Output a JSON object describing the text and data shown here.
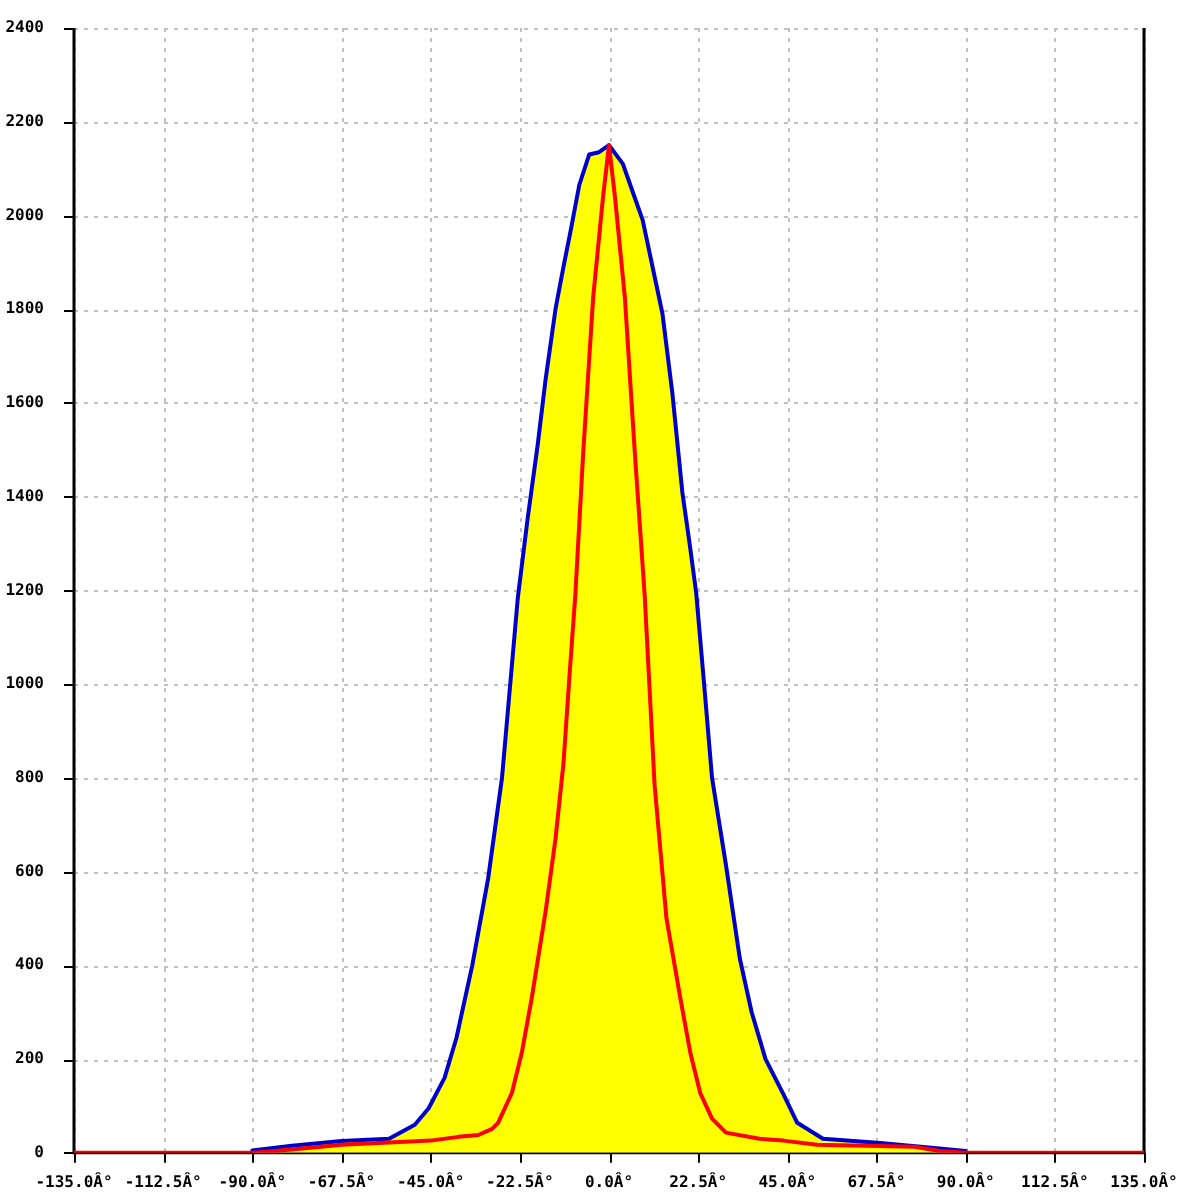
{
  "chart_data": {
    "type": "area",
    "xlim": [
      -135,
      135
    ],
    "xticks": [
      {
        "value": -135,
        "label": "-135.0Â°"
      },
      {
        "value": -112.5,
        "label": "-112.5Â°"
      },
      {
        "value": -90,
        "label": "-90.0Â°"
      },
      {
        "value": -67.5,
        "label": "-67.5Â°"
      },
      {
        "value": -45,
        "label": "-45.0Â°"
      },
      {
        "value": -22.5,
        "label": "-22.5Â°"
      },
      {
        "value": 0,
        "label": "0.0Â°"
      },
      {
        "value": 22.5,
        "label": "22.5Â°"
      },
      {
        "value": 45,
        "label": "45.0Â°"
      },
      {
        "value": 67.5,
        "label": "67.5Â°"
      },
      {
        "value": 90,
        "label": "90.0Â°"
      },
      {
        "value": 112.5,
        "label": "112.5Â°"
      },
      {
        "value": 135,
        "label": "135.0Â°"
      }
    ],
    "ylim": [
      0,
      2400
    ],
    "yticks": [
      0,
      200,
      400,
      600,
      800,
      1000,
      1200,
      1400,
      1600,
      1800,
      2000,
      2200,
      2400
    ],
    "grid": true,
    "marker": "none",
    "series": [
      {
        "color": "#ffff00",
        "x": [
          -90,
          -80,
          -67.5,
          -55.5,
          -49,
          -45.5,
          -41.5,
          -38.5,
          -34.5,
          -30.5,
          -27,
          -23,
          -20.5,
          -18,
          -16,
          -13.5,
          -11.5,
          -9.5,
          -7.5,
          -5,
          -2.5,
          0,
          3.5,
          6,
          8.5,
          11,
          13.5,
          16,
          18.5,
          20.5,
          22,
          24,
          26,
          29.5,
          33,
          36,
          39.5,
          44,
          47.5,
          54,
          68.5,
          80,
          90
        ],
        "values": [
          5,
          15,
          25,
          30,
          60,
          95,
          160,
          245,
          400,
          585,
          800,
          1185,
          1355,
          1510,
          1650,
          1800,
          1890,
          1975,
          2065,
          2130,
          2135,
          2150,
          2110,
          2050,
          1990,
          1890,
          1790,
          1620,
          1410,
          1290,
          1195,
          1000,
          800,
          615,
          415,
          300,
          200,
          125,
          64,
          30,
          21,
          12,
          4
        ]
      },
      {
        "type": "line",
        "color": "#ff0000",
        "x": [
          -135,
          -90,
          -80,
          -67.5,
          -45,
          -38,
          -33,
          -29.5,
          -28,
          -24.5,
          -22,
          -19.5,
          -16,
          -13.5,
          -11.5,
          -10,
          -8.5,
          -6.5,
          -4,
          -1.5,
          0,
          1.5,
          4,
          6.5,
          9,
          11.5,
          14.5,
          18,
          20.5,
          23,
          26,
          29.5,
          38,
          44,
          52.5,
          77,
          83.5,
          90,
          135
        ],
        "values": [
          0,
          0,
          7,
          17,
          26,
          34,
          38,
          51,
          64,
          128,
          214,
          330,
          515,
          670,
          830,
          1015,
          1190,
          1495,
          1825,
          2040,
          2150,
          2040,
          1825,
          1495,
          1190,
          785,
          500,
          330,
          214,
          128,
          73,
          43,
          30,
          26,
          17,
          13,
          4,
          0,
          0
        ]
      }
    ]
  }
}
